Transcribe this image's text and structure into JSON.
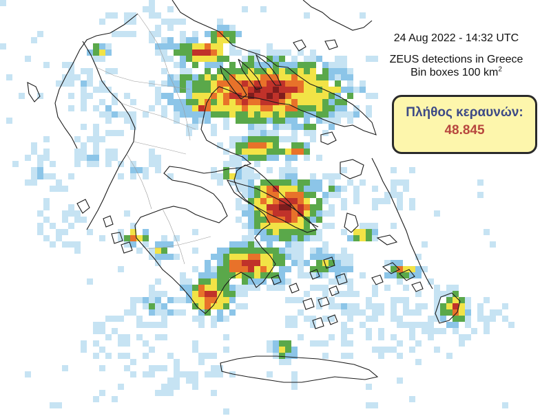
{
  "map": {
    "title": "24  Aug 2022 - 14:32 UTC",
    "subtitle_line1": "ZEUS detections in Greece",
    "subtitle_line2_prefix": "Bin boxes 100 km",
    "subtitle_line2_sup": "2"
  },
  "count_box": {
    "label": "Πλήθος κεραυνών:",
    "value": "48.845"
  },
  "colors": {
    "low": "#c6e3f3",
    "low_mid": "#8cc5e8",
    "mid": "#5aa84a",
    "mid_high": "#f2e346",
    "high": "#e8722a",
    "very_high": "#c0322a",
    "max": "#7f1d1d",
    "coastline": "#1a1a1a",
    "borders": "#9a9a9a",
    "box_fill": "#fdf6ac",
    "label_color": "#3d4a86",
    "value_color": "#b7473e"
  },
  "legend_levels": [
    "low",
    "low_mid",
    "mid",
    "mid_high",
    "high",
    "very_high",
    "max"
  ]
}
